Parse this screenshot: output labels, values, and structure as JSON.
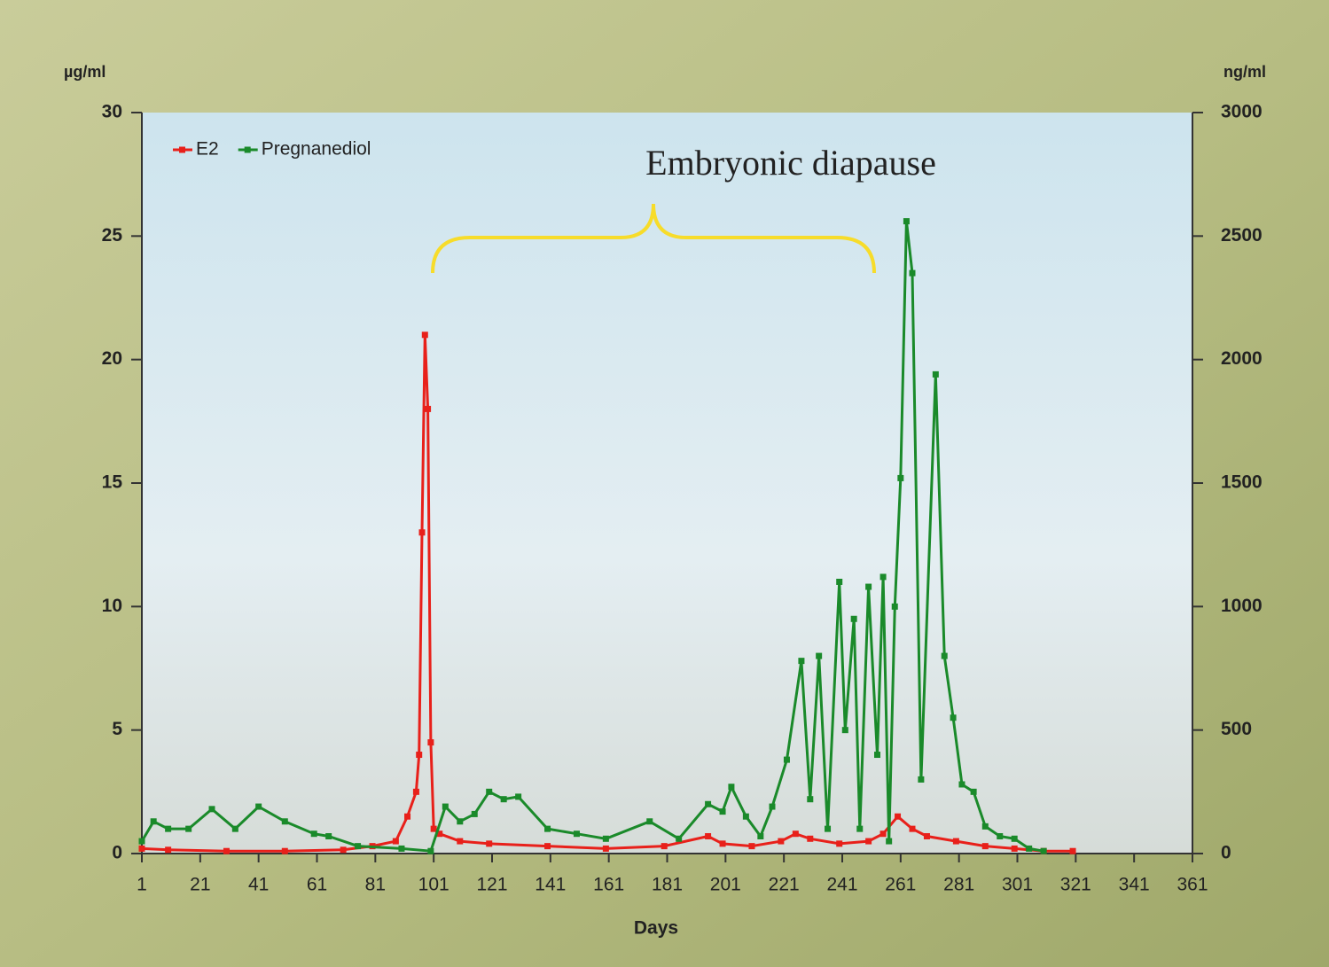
{
  "chart_data": {
    "type": "line",
    "y_label": "µg/ml",
    "y2_label": "ng/ml",
    "x_label": "Days",
    "annotation": "Embryonic diapause",
    "xlim": [
      1,
      361
    ],
    "xticks": [
      1,
      21,
      41,
      61,
      81,
      101,
      121,
      141,
      161,
      181,
      201,
      221,
      241,
      261,
      281,
      301,
      321,
      341,
      361
    ],
    "ylim": [
      0,
      30
    ],
    "yticks": [
      0,
      5,
      10,
      15,
      20,
      25,
      30
    ],
    "y2lim": [
      0,
      3000
    ],
    "y2ticks": [
      0,
      500,
      1000,
      1500,
      2000,
      2500,
      3000
    ],
    "y2_color": "#e8201a",
    "legend": "upper left",
    "series": [
      {
        "name": "E2",
        "color": "#e8201a",
        "axis": "y2",
        "x": [
          1,
          10,
          30,
          50,
          70,
          80,
          88,
          92,
          95,
          96,
          97,
          98,
          99,
          100,
          101,
          103,
          110,
          120,
          140,
          160,
          180,
          195,
          200,
          210,
          220,
          225,
          230,
          240,
          250,
          255,
          260,
          265,
          270,
          280,
          290,
          300,
          310,
          320
        ],
        "values": [
          20,
          15,
          10,
          10,
          15,
          30,
          50,
          150,
          250,
          400,
          1300,
          2100,
          1800,
          450,
          100,
          80,
          50,
          40,
          30,
          20,
          30,
          70,
          40,
          30,
          50,
          80,
          60,
          40,
          50,
          80,
          150,
          100,
          70,
          50,
          30,
          20,
          10,
          10
        ]
      },
      {
        "name": "Pregnanediol",
        "color": "#1a8a2a",
        "x": [
          1,
          5,
          10,
          17,
          25,
          33,
          41,
          50,
          60,
          65,
          75,
          90,
          100,
          105,
          110,
          115,
          120,
          125,
          130,
          140,
          150,
          160,
          175,
          185,
          195,
          200,
          203,
          208,
          213,
          217,
          222,
          227,
          230,
          233,
          236,
          240,
          242,
          245,
          247,
          250,
          253,
          255,
          257,
          259,
          261,
          263,
          265,
          268,
          273,
          276,
          279,
          282,
          286,
          290,
          295,
          300,
          305,
          310
        ],
        "values": [
          0.5,
          1.3,
          1.0,
          1.0,
          1.8,
          1.0,
          1.9,
          1.3,
          0.8,
          0.7,
          0.3,
          0.2,
          0.1,
          1.9,
          1.3,
          1.6,
          2.5,
          2.2,
          2.3,
          1.0,
          0.8,
          0.6,
          1.3,
          0.6,
          2.0,
          1.7,
          2.7,
          1.5,
          0.7,
          1.9,
          3.8,
          7.8,
          2.2,
          8.0,
          1.0,
          11.0,
          5.0,
          9.5,
          1.0,
          10.8,
          4.0,
          11.2,
          0.5,
          10.0,
          15.2,
          25.6,
          23.5,
          3.0,
          19.4,
          8.0,
          5.5,
          2.8,
          2.5,
          1.1,
          0.7,
          0.6,
          0.2,
          0.1
        ]
      }
    ]
  }
}
